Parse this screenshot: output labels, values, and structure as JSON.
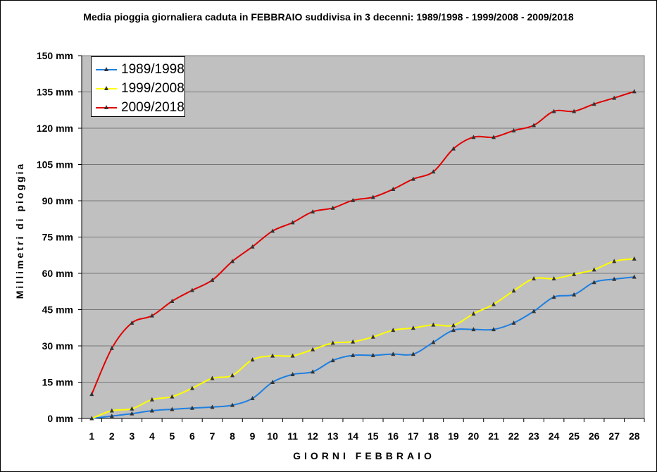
{
  "chart_data": {
    "type": "line",
    "title": "Media pioggia giornaliera caduta in FEBBRAIO suddivisa in 3 decenni: 1989/1998 - 1999/2008 - 2009/2018",
    "xlabel": "GIORNI FEBBRAIO",
    "ylabel": "Millimetri di pioggia",
    "categories": [
      "1",
      "2",
      "3",
      "4",
      "5",
      "6",
      "7",
      "8",
      "9",
      "10",
      "11",
      "12",
      "13",
      "14",
      "15",
      "16",
      "17",
      "18",
      "19",
      "20",
      "21",
      "22",
      "23",
      "24",
      "25",
      "26",
      "27",
      "28"
    ],
    "ylim": [
      0,
      150
    ],
    "yticks": [
      "0 mm",
      "15 mm",
      "30 mm",
      "45 mm",
      "60 mm",
      "75 mm",
      "90 mm",
      "105 mm",
      "120 mm",
      "135 mm",
      "150 mm"
    ],
    "grid": true,
    "legend": "top-left",
    "plot_background": "#c0c0c0",
    "series": [
      {
        "name": "1989/1998",
        "color": "#1f7fe0",
        "values": [
          0,
          1,
          2,
          3.2,
          3.8,
          4.3,
          4.7,
          5.5,
          8.3,
          15,
          18.2,
          19.3,
          24,
          26.1,
          26.1,
          26.6,
          26.6,
          31.5,
          36.5,
          36.8,
          36.8,
          39.5,
          44.3,
          50.2,
          51.2,
          56.3,
          57.6,
          58.5
        ]
      },
      {
        "name": "1999/2008",
        "color": "#ffff00",
        "values": [
          0,
          3.2,
          4,
          7.8,
          9,
          12.5,
          16.6,
          17.8,
          24.3,
          25.9,
          25.9,
          28.5,
          31.2,
          31.7,
          33.7,
          36.5,
          37.4,
          38.7,
          38.5,
          43.3,
          47.2,
          52.8,
          57.8,
          57.8,
          59.6,
          61.5,
          65,
          66
        ]
      },
      {
        "name": "2009/2018",
        "color": "#e00000",
        "values": [
          10,
          29,
          39.5,
          42.5,
          48.5,
          53,
          57.2,
          65,
          71,
          77.5,
          81,
          85.5,
          87,
          90.2,
          91.5,
          94.8,
          99,
          102,
          111.5,
          116.3,
          116.3,
          119,
          121.2,
          127,
          127,
          130,
          132.5,
          135.2
        ]
      }
    ]
  }
}
